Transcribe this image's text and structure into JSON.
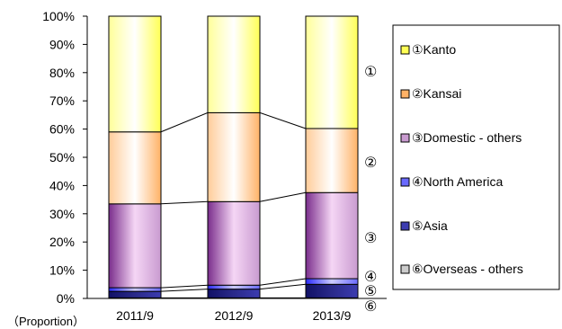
{
  "chart_data": {
    "type": "bar",
    "stacked": true,
    "percent_stacked": true,
    "categories": [
      "2011/9",
      "2012/9",
      "2013/9"
    ],
    "series": [
      {
        "name": "Kanto",
        "marker": "①",
        "values": [
          41.0,
          34.2,
          39.8
        ],
        "color_top": "#ffffff",
        "color_mid": "#ffff55",
        "color_bot": "#ffff99"
      },
      {
        "name": "Kansai",
        "marker": "②",
        "values": [
          25.5,
          31.5,
          22.7
        ],
        "color_top": "#ffffff",
        "color_mid": "#ffb266",
        "color_bot": "#ffcc99"
      },
      {
        "name": "Domestic - others",
        "marker": "③",
        "values": [
          29.7,
          29.6,
          30.5
        ],
        "color_top": "#f5d6f5",
        "color_mid": "#c99bd0",
        "color_bot": "#7a2d8c"
      },
      {
        "name": "North America",
        "marker": "④",
        "values": [
          1.3,
          1.4,
          2.0
        ],
        "color_top": "#ccccff",
        "color_mid": "#6a6aff",
        "color_bot": "#2a2aff"
      },
      {
        "name": "Asia",
        "marker": "⑤",
        "values": [
          2.3,
          3.1,
          4.8
        ],
        "color_top": "#2a2a8a",
        "color_mid": "#3c3cb0",
        "color_bot": "#111166"
      },
      {
        "name": "Overseas - others",
        "marker": "⑥",
        "values": [
          0.2,
          0.2,
          0.2
        ],
        "color_top": "#f0f0f0",
        "color_mid": "#cccccc",
        "color_bot": "#aaaaaa"
      }
    ],
    "ylim": [
      0,
      100
    ],
    "yticks": [
      "0%",
      "10%",
      "20%",
      "30%",
      "40%",
      "50%",
      "60%",
      "70%",
      "80%",
      "90%",
      "100%"
    ],
    "ylabel": "（Proportion）",
    "legend_position": "right",
    "right_markers": [
      "①",
      "②",
      "③",
      "④",
      "⑤",
      "⑥"
    ],
    "connector_lines": true,
    "grid": false
  }
}
